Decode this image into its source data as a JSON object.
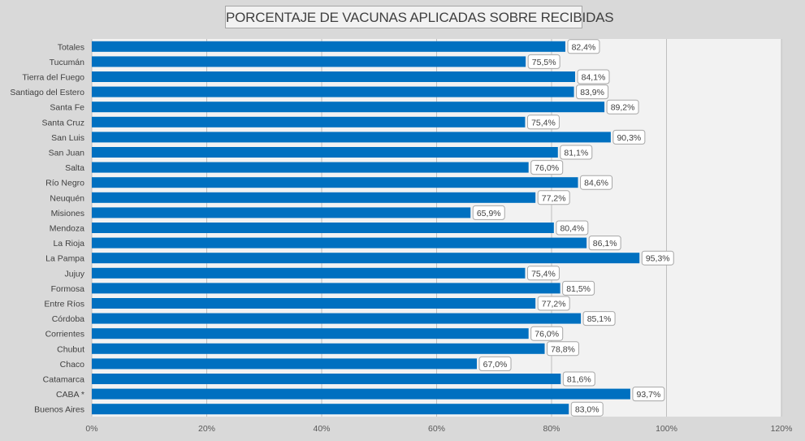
{
  "chart_data": {
    "type": "bar",
    "orientation": "horizontal",
    "title": "PORCENTAJE DE VACUNAS APLICADAS SOBRE RECIBIDAS",
    "categories": [
      "Totales",
      "Tucumán",
      "Tierra del Fuego",
      "Santiago del Estero",
      "Santa Fe",
      "Santa Cruz",
      "San Luis",
      "San Juan",
      "Salta",
      "Río Negro",
      "Neuquén",
      "Misiones",
      "Mendoza",
      "La Rioja",
      "La Pampa",
      "Jujuy",
      "Formosa",
      "Entre Ríos",
      "Córdoba",
      "Corrientes",
      "Chubut",
      "Chaco",
      "Catamarca",
      "CABA *",
      "Buenos Aires"
    ],
    "values": [
      82.4,
      75.5,
      84.1,
      83.9,
      89.2,
      75.4,
      90.3,
      81.1,
      76.0,
      84.6,
      77.2,
      65.9,
      80.4,
      86.1,
      95.3,
      75.4,
      81.5,
      77.2,
      85.1,
      76.0,
      78.8,
      67.0,
      81.6,
      93.7,
      83.0
    ],
    "data_labels": [
      "82,4%",
      "75,5%",
      "84,1%",
      "83,9%",
      "89,2%",
      "75,4%",
      "90,3%",
      "81,1%",
      "76,0%",
      "84,6%",
      "77,2%",
      "65,9%",
      "80,4%",
      "86,1%",
      "95,3%",
      "75,4%",
      "81,5%",
      "77,2%",
      "85,1%",
      "76,0%",
      "78,8%",
      "67,0%",
      "81,6%",
      "93,7%",
      "83,0%"
    ],
    "xticks": [
      0,
      20,
      40,
      60,
      80,
      100,
      120
    ],
    "xtick_labels": [
      "0%",
      "20%",
      "40%",
      "60%",
      "80%",
      "100%",
      "120%"
    ],
    "xlim": [
      0,
      120
    ],
    "grid": true,
    "bar_color": "#0070c0",
    "background_color": "#d9d9d9",
    "plot_area_color": "#f2f2f2"
  }
}
